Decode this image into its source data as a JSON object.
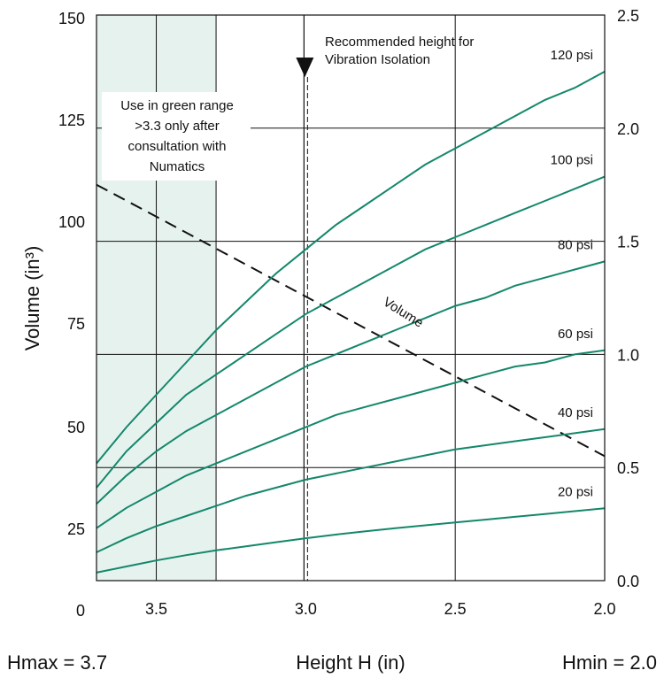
{
  "chart_data": {
    "type": "line",
    "title": "",
    "xlabel": "Height H (in)",
    "xlim": [
      3.7,
      2.0
    ],
    "ylim_left": [
      10,
      150
    ],
    "ylim_right": [
      0.0,
      2.5
    ],
    "left_axis_label": "Volume (in³)",
    "left_ticks": [
      "150",
      "125",
      "100",
      "75",
      "50",
      "25",
      "0"
    ],
    "right_ticks": [
      "2.5",
      "2.0",
      "1.5",
      "1.0",
      "0.5",
      "0.0"
    ],
    "x_ticks": [
      "3.5",
      "3.0",
      "2.5",
      "2.0"
    ],
    "hmax_label": "Hmax = 3.7",
    "hmin_label": "Hmin = 2.0",
    "green_range": {
      "from": 3.7,
      "to": 3.3,
      "color": "#e6f2ee"
    },
    "green_note": [
      "Use in green range",
      ">3.3 only after",
      "consultation with",
      "Numatics"
    ],
    "recommended_height": 3.0,
    "recommended_label": [
      "Recommended height for",
      "Vibration Isolation"
    ],
    "curve_color": "#14876a",
    "series": [
      {
        "name": "120 psi",
        "x": [
          3.7,
          3.6,
          3.5,
          3.4,
          3.3,
          3.2,
          3.1,
          3.0,
          2.9,
          2.8,
          2.7,
          2.6,
          2.5,
          2.4,
          2.3,
          2.2,
          2.1,
          2.0
        ],
        "y": [
          39,
          48,
          56,
          64,
          72,
          79,
          86,
          92,
          98,
          103,
          108,
          113,
          117,
          121,
          125,
          129,
          132,
          136
        ]
      },
      {
        "name": "100 psi",
        "x": [
          3.7,
          3.6,
          3.5,
          3.4,
          3.3,
          3.2,
          3.1,
          3.0,
          2.9,
          2.8,
          2.7,
          2.6,
          2.5,
          2.4,
          2.3,
          2.2,
          2.1,
          2.0
        ],
        "y": [
          33,
          42,
          49,
          56,
          61,
          66,
          71,
          76,
          80,
          84,
          88,
          92,
          95,
          98,
          101,
          104,
          107,
          110
        ]
      },
      {
        "name": "80 psi",
        "x": [
          3.7,
          3.6,
          3.5,
          3.4,
          3.3,
          3.2,
          3.1,
          3.0,
          2.9,
          2.8,
          2.7,
          2.6,
          2.5,
          2.4,
          2.3,
          2.2,
          2.1,
          2.0
        ],
        "y": [
          29,
          36,
          42,
          47,
          51,
          55,
          59,
          63,
          66,
          69,
          72,
          75,
          78,
          80,
          83,
          85,
          87,
          89
        ]
      },
      {
        "name": "60 psi",
        "x": [
          3.7,
          3.6,
          3.5,
          3.4,
          3.3,
          3.2,
          3.1,
          3.0,
          2.9,
          2.8,
          2.7,
          2.6,
          2.5,
          2.4,
          2.3,
          2.2,
          2.1,
          2.0
        ],
        "y": [
          23,
          28,
          32,
          36,
          39,
          42,
          45,
          48,
          51,
          53,
          55,
          57,
          59,
          61,
          63,
          64,
          66,
          67
        ]
      },
      {
        "name": "40 psi",
        "x": [
          3.7,
          3.6,
          3.5,
          3.4,
          3.3,
          3.2,
          3.1,
          3.0,
          2.9,
          2.8,
          2.7,
          2.6,
          2.5,
          2.4,
          2.3,
          2.2,
          2.1,
          2.0
        ],
        "y": [
          17,
          20.5,
          23.5,
          26,
          28.5,
          31,
          33,
          35,
          36.5,
          38,
          39.5,
          41,
          42.5,
          43.5,
          44.5,
          45.5,
          46.5,
          47.5
        ]
      },
      {
        "name": "20 psi",
        "x": [
          3.7,
          3.6,
          3.5,
          3.4,
          3.3,
          3.2,
          3.1,
          3.0,
          2.9,
          2.8,
          2.7,
          2.6,
          2.5,
          2.4,
          2.3,
          2.2,
          2.1,
          2.0
        ],
        "y": [
          12,
          13.5,
          15,
          16.3,
          17.5,
          18.5,
          19.5,
          20.5,
          21.4,
          22.2,
          23,
          23.7,
          24.4,
          25.1,
          25.8,
          26.5,
          27.2,
          27.9
        ]
      }
    ],
    "volume_line": {
      "name": "Volume",
      "x": [
        3.7,
        2.0
      ],
      "y": [
        1.75,
        0.55
      ]
    },
    "grid": {
      "x": [
        3.5,
        3.0,
        2.5
      ],
      "y_right": [
        0.5,
        1.0,
        1.5,
        2.0
      ]
    }
  }
}
